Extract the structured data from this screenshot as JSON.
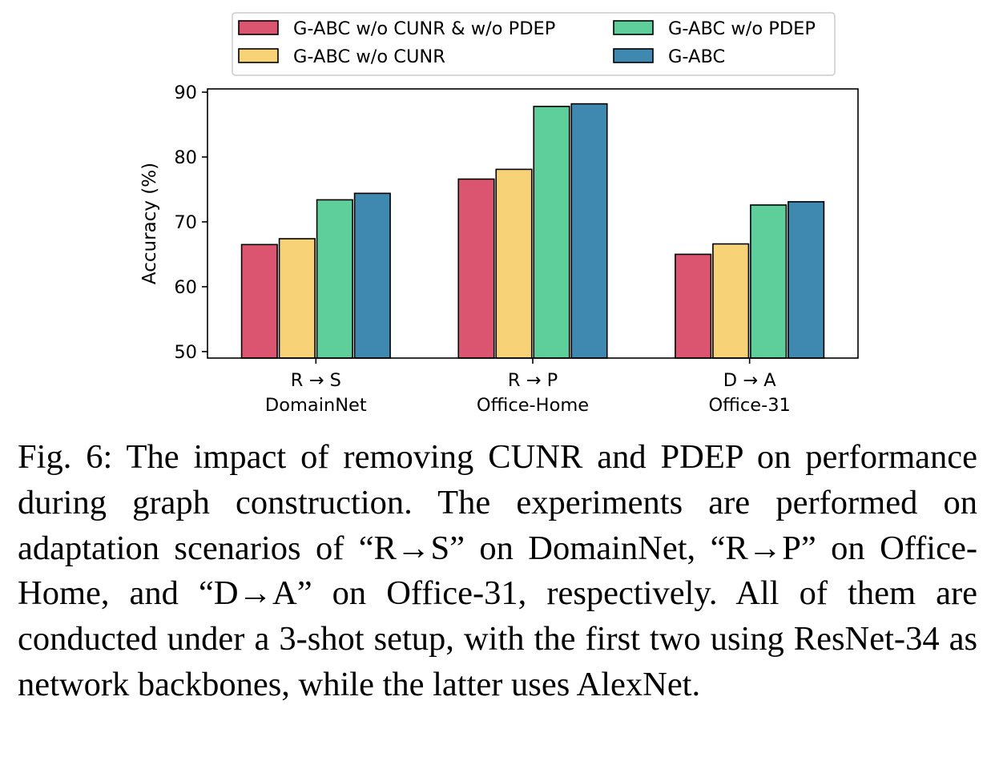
{
  "chart_data": {
    "type": "bar",
    "ylabel": "Accuracy (%)",
    "ylim": [
      49,
      90.5
    ],
    "yticks": [
      50,
      60,
      70,
      80,
      90
    ],
    "grid": false,
    "legend_position": "top-center",
    "groups": [
      {
        "arrow_label": "R → S",
        "dataset": "DomainNet"
      },
      {
        "arrow_label": "R → P",
        "dataset": "Office-Home"
      },
      {
        "arrow_label": "D → A",
        "dataset": "Office-31"
      }
    ],
    "series": [
      {
        "name": "G-ABC w/o CUNR & w/o PDEP",
        "color": "#dc5570",
        "values": [
          66.5,
          76.6,
          65.0
        ]
      },
      {
        "name": "G-ABC w/o CUNR",
        "color": "#f7d276",
        "values": [
          67.4,
          78.1,
          66.6
        ]
      },
      {
        "name": "G-ABC w/o PDEP",
        "color": "#5ecf9b",
        "values": [
          73.4,
          87.8,
          72.6
        ]
      },
      {
        "name": "G-ABC",
        "color": "#3f88b0",
        "values": [
          74.4,
          88.2,
          73.1
        ]
      }
    ]
  },
  "caption": "Fig. 6: The impact of removing CUNR and PDEP on performance during graph construction. The experiments are performed on adaptation scenarios of “R→S” on DomainNet, “R→P” on Office-Home, and “D→A” on Office-31, respectively. All of them are conducted under a 3-shot setup, with the first two using ResNet-34 as network backbones, while the latter uses AlexNet."
}
